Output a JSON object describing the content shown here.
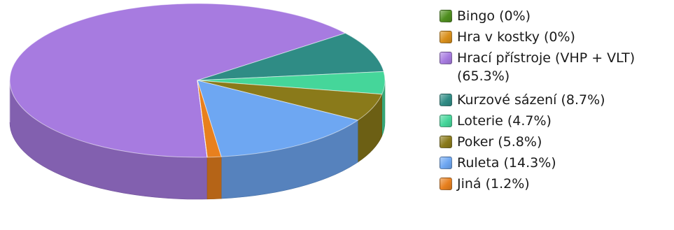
{
  "chart_data": {
    "type": "pie",
    "style": "3d",
    "title": "",
    "legend_position": "right",
    "series": [
      {
        "label": "Bingo (0%)",
        "value": 0,
        "color": "#4f8f1f"
      },
      {
        "label": "Hra v kostky (0%)",
        "value": 0,
        "color": "#d98f1a"
      },
      {
        "label": "Hrací přístroje (VHP + VLT) (65.3%)",
        "value": 65.3,
        "color": "#a77be0"
      },
      {
        "label": "Kurzové sázení (8.7%)",
        "value": 8.7,
        "color": "#2f8c85"
      },
      {
        "label": "Loterie (4.7%)",
        "value": 4.7,
        "color": "#45d69a"
      },
      {
        "label": "Poker (5.8%)",
        "value": 5.8,
        "color": "#8a7a1a"
      },
      {
        "label": "Ruleta (14.3%)",
        "value": 14.3,
        "color": "#6ea7f2"
      },
      {
        "label": "Jiná (1.2%)",
        "value": 1.2,
        "color": "#e8801e"
      }
    ]
  }
}
